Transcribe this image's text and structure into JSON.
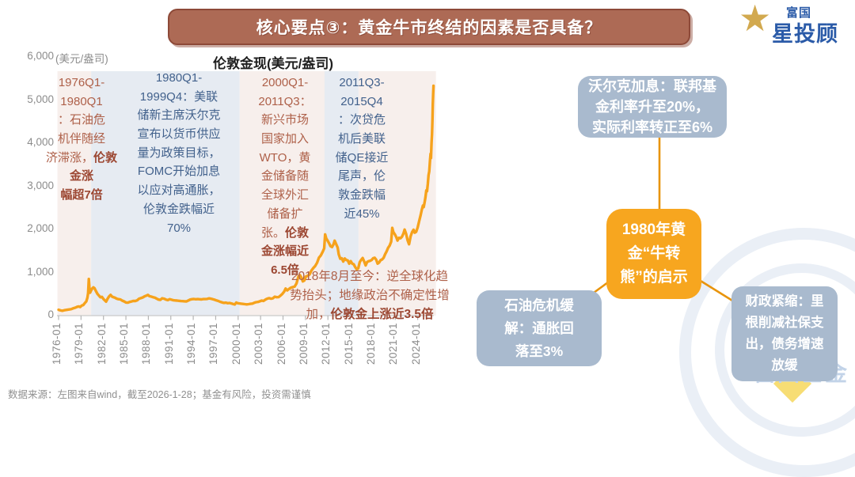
{
  "banner": {
    "title": "核心要点③：黄金牛市终结的因素是否具备？"
  },
  "logo": {
    "line1": "富国",
    "line2": "星投顾",
    "star_icon": "gold-star"
  },
  "chart_data": {
    "type": "line",
    "title": "伦敦金现(美元/盎司)",
    "unit_label": "(美元/盎司)",
    "xlabel": "",
    "ylabel": "美元/盎司",
    "ylim": [
      0,
      6000
    ],
    "grid": false,
    "y_ticks": [
      {
        "value": 6000,
        "label": "6,000"
      },
      {
        "value": 5000,
        "label": "5,000"
      },
      {
        "value": 4000,
        "label": "4,000"
      },
      {
        "value": 3000,
        "label": "3,000"
      },
      {
        "value": 2000,
        "label": "2,000"
      },
      {
        "value": 1000,
        "label": "1,000"
      },
      {
        "value": 0,
        "label": "0"
      }
    ],
    "x_ticks": [
      {
        "year": 1976,
        "label": "1976-01"
      },
      {
        "year": 1979,
        "label": "1979-01"
      },
      {
        "year": 1982,
        "label": "1982-01"
      },
      {
        "year": 1985,
        "label": "1985-01"
      },
      {
        "year": 1988,
        "label": "1988-01"
      },
      {
        "year": 1991,
        "label": "1991-01"
      },
      {
        "year": 1994,
        "label": "1994-01"
      },
      {
        "year": 1997,
        "label": "1997-01"
      },
      {
        "year": 2000,
        "label": "2000-01"
      },
      {
        "year": 2003,
        "label": "2003-01"
      },
      {
        "year": 2006,
        "label": "2006-01"
      },
      {
        "year": 2009,
        "label": "2009-01"
      },
      {
        "year": 2012,
        "label": "2012-01"
      },
      {
        "year": 2015,
        "label": "2015-01"
      },
      {
        "year": 2018,
        "label": "2018-01"
      },
      {
        "year": 2021,
        "label": "2021-01"
      },
      {
        "year": 2024,
        "label": "2024-01"
      }
    ],
    "bands": [
      {
        "from": 1975.85,
        "to": 1980.35,
        "phase": "bull",
        "color": "#f7efec"
      },
      {
        "from": 1980.35,
        "to": 2000.2,
        "phase": "bear",
        "color": "#e6ebf2"
      },
      {
        "from": 2000.2,
        "to": 2011.55,
        "phase": "bull",
        "color": "#f7efec"
      },
      {
        "from": 2011.55,
        "to": 2016.1,
        "phase": "bear",
        "color": "#e6ebf2"
      },
      {
        "from": 2016.1,
        "to": 2026.45,
        "phase": "bull",
        "color": "#f7efec"
      }
    ],
    "series": [
      {
        "name": "伦敦金现",
        "color": "#f6a21c",
        "points": [
          [
            1976.0,
            135
          ],
          [
            1976.25,
            122
          ],
          [
            1976.5,
            112
          ],
          [
            1976.75,
            125
          ],
          [
            1977.0,
            133
          ],
          [
            1977.25,
            140
          ],
          [
            1977.5,
            145
          ],
          [
            1977.75,
            155
          ],
          [
            1978.0,
            172
          ],
          [
            1978.25,
            185
          ],
          [
            1978.5,
            205
          ],
          [
            1978.7,
            212
          ],
          [
            1978.9,
            200
          ],
          [
            1979.1,
            235
          ],
          [
            1979.3,
            245
          ],
          [
            1979.5,
            290
          ],
          [
            1979.7,
            330
          ],
          [
            1979.85,
            415
          ],
          [
            1979.95,
            520
          ],
          [
            1980.04,
            850
          ],
          [
            1980.12,
            665
          ],
          [
            1980.2,
            530
          ],
          [
            1980.35,
            585
          ],
          [
            1980.5,
            630
          ],
          [
            1980.65,
            655
          ],
          [
            1980.8,
            635
          ],
          [
            1981.0,
            565
          ],
          [
            1981.2,
            505
          ],
          [
            1981.4,
            465
          ],
          [
            1981.6,
            425
          ],
          [
            1981.8,
            435
          ],
          [
            1982.0,
            385
          ],
          [
            1982.2,
            350
          ],
          [
            1982.35,
            325
          ],
          [
            1982.55,
            390
          ],
          [
            1982.75,
            445
          ],
          [
            1982.95,
            480
          ],
          [
            1983.15,
            440
          ],
          [
            1983.35,
            425
          ],
          [
            1983.55,
            415
          ],
          [
            1983.75,
            395
          ],
          [
            1984.0,
            382
          ],
          [
            1984.25,
            376
          ],
          [
            1984.5,
            348
          ],
          [
            1984.75,
            330
          ],
          [
            1985.0,
            305
          ],
          [
            1985.25,
            300
          ],
          [
            1985.5,
            318
          ],
          [
            1985.75,
            328
          ],
          [
            1986.0,
            342
          ],
          [
            1986.25,
            340
          ],
          [
            1986.5,
            355
          ],
          [
            1986.75,
            392
          ],
          [
            1987.0,
            405
          ],
          [
            1987.25,
            422
          ],
          [
            1987.5,
            448
          ],
          [
            1987.75,
            465
          ],
          [
            1987.95,
            480
          ],
          [
            1988.15,
            452
          ],
          [
            1988.4,
            440
          ],
          [
            1988.65,
            428
          ],
          [
            1988.9,
            415
          ],
          [
            1989.1,
            395
          ],
          [
            1989.35,
            372
          ],
          [
            1989.6,
            365
          ],
          [
            1989.85,
            402
          ],
          [
            1990.1,
            392
          ],
          [
            1990.35,
            372
          ],
          [
            1990.6,
            360
          ],
          [
            1990.85,
            382
          ],
          [
            1991.1,
            368
          ],
          [
            1991.35,
            356
          ],
          [
            1991.6,
            352
          ],
          [
            1991.85,
            348
          ],
          [
            1992.1,
            344
          ],
          [
            1992.35,
            338
          ],
          [
            1992.6,
            335
          ],
          [
            1992.85,
            332
          ],
          [
            1993.1,
            330
          ],
          [
            1993.35,
            352
          ],
          [
            1993.6,
            372
          ],
          [
            1993.85,
            382
          ],
          [
            1994.1,
            386
          ],
          [
            1994.35,
            380
          ],
          [
            1994.6,
            384
          ],
          [
            1994.85,
            380
          ],
          [
            1995.1,
            376
          ],
          [
            1995.35,
            383
          ],
          [
            1995.6,
            384
          ],
          [
            1995.85,
            387
          ],
          [
            1996.1,
            400
          ],
          [
            1996.35,
            392
          ],
          [
            1996.6,
            382
          ],
          [
            1996.85,
            368
          ],
          [
            1997.1,
            352
          ],
          [
            1997.35,
            340
          ],
          [
            1997.6,
            322
          ],
          [
            1997.85,
            306
          ],
          [
            1998.1,
            295
          ],
          [
            1998.35,
            301
          ],
          [
            1998.6,
            288
          ],
          [
            1998.85,
            293
          ],
          [
            1999.1,
            283
          ],
          [
            1999.35,
            268
          ],
          [
            1999.55,
            258
          ],
          [
            1999.75,
            302
          ],
          [
            1999.95,
            288
          ],
          [
            2000.15,
            283
          ],
          [
            2000.4,
            277
          ],
          [
            2000.65,
            272
          ],
          [
            2000.9,
            266
          ],
          [
            2001.15,
            260
          ],
          [
            2001.4,
            266
          ],
          [
            2001.65,
            273
          ],
          [
            2001.9,
            278
          ],
          [
            2002.15,
            298
          ],
          [
            2002.4,
            312
          ],
          [
            2002.65,
            318
          ],
          [
            2002.9,
            332
          ],
          [
            2003.15,
            348
          ],
          [
            2003.4,
            342
          ],
          [
            2003.65,
            372
          ],
          [
            2003.9,
            395
          ],
          [
            2004.15,
            405
          ],
          [
            2004.4,
            392
          ],
          [
            2004.65,
            402
          ],
          [
            2004.9,
            438
          ],
          [
            2005.15,
            428
          ],
          [
            2005.4,
            430
          ],
          [
            2005.65,
            462
          ],
          [
            2005.9,
            502
          ],
          [
            2006.15,
            556
          ],
          [
            2006.35,
            628
          ],
          [
            2006.55,
            585
          ],
          [
            2006.8,
            618
          ],
          [
            2007.05,
            648
          ],
          [
            2007.3,
            662
          ],
          [
            2007.55,
            672
          ],
          [
            2007.8,
            745
          ],
          [
            2008.05,
            905
          ],
          [
            2008.25,
            940
          ],
          [
            2008.45,
            885
          ],
          [
            2008.65,
            795
          ],
          [
            2008.85,
            815
          ],
          [
            2009.05,
            905
          ],
          [
            2009.3,
            925
          ],
          [
            2009.55,
            955
          ],
          [
            2009.8,
            1045
          ],
          [
            2010.05,
            1105
          ],
          [
            2010.3,
            1150
          ],
          [
            2010.55,
            1225
          ],
          [
            2010.8,
            1345
          ],
          [
            2011.05,
            1395
          ],
          [
            2011.3,
            1480
          ],
          [
            2011.5,
            1560
          ],
          [
            2011.63,
            1885
          ],
          [
            2011.78,
            1790
          ],
          [
            2011.95,
            1745
          ],
          [
            2012.15,
            1680
          ],
          [
            2012.35,
            1610
          ],
          [
            2012.55,
            1590
          ],
          [
            2012.75,
            1655
          ],
          [
            2012.9,
            1740
          ],
          [
            2013.1,
            1660
          ],
          [
            2013.3,
            1580
          ],
          [
            2013.45,
            1420
          ],
          [
            2013.65,
            1320
          ],
          [
            2013.85,
            1330
          ],
          [
            2014.05,
            1255
          ],
          [
            2014.25,
            1325
          ],
          [
            2014.45,
            1290
          ],
          [
            2014.65,
            1282
          ],
          [
            2014.85,
            1205
          ],
          [
            2015.05,
            1265
          ],
          [
            2015.25,
            1205
          ],
          [
            2015.45,
            1190
          ],
          [
            2015.65,
            1125
          ],
          [
            2015.85,
            1075
          ],
          [
            2016.05,
            1095
          ],
          [
            2016.25,
            1240
          ],
          [
            2016.45,
            1295
          ],
          [
            2016.65,
            1335
          ],
          [
            2016.85,
            1255
          ],
          [
            2017.05,
            1165
          ],
          [
            2017.25,
            1245
          ],
          [
            2017.45,
            1262
          ],
          [
            2017.65,
            1272
          ],
          [
            2017.85,
            1292
          ],
          [
            2018.05,
            1332
          ],
          [
            2018.25,
            1342
          ],
          [
            2018.45,
            1298
          ],
          [
            2018.65,
            1205
          ],
          [
            2018.85,
            1232
          ],
          [
            2019.05,
            1288
          ],
          [
            2019.25,
            1302
          ],
          [
            2019.45,
            1342
          ],
          [
            2019.65,
            1425
          ],
          [
            2019.85,
            1492
          ],
          [
            2020.05,
            1575
          ],
          [
            2020.25,
            1625
          ],
          [
            2020.45,
            1715
          ],
          [
            2020.6,
            2035
          ],
          [
            2020.75,
            1935
          ],
          [
            2020.95,
            1885
          ],
          [
            2021.15,
            1815
          ],
          [
            2021.3,
            1742
          ],
          [
            2021.5,
            1805
          ],
          [
            2021.7,
            1795
          ],
          [
            2021.9,
            1832
          ],
          [
            2022.1,
            1905
          ],
          [
            2022.25,
            1995
          ],
          [
            2022.45,
            1895
          ],
          [
            2022.65,
            1752
          ],
          [
            2022.85,
            1655
          ],
          [
            2023.05,
            1835
          ],
          [
            2023.25,
            1935
          ],
          [
            2023.45,
            1992
          ],
          [
            2023.6,
            1925
          ],
          [
            2023.8,
            1945
          ],
          [
            2024.0,
            2045
          ],
          [
            2024.2,
            2195
          ],
          [
            2024.4,
            2335
          ],
          [
            2024.55,
            2455
          ],
          [
            2024.7,
            2552
          ],
          [
            2024.8,
            2518
          ],
          [
            2024.95,
            2655
          ],
          [
            2025.05,
            2758
          ],
          [
            2025.15,
            2905
          ],
          [
            2025.25,
            2885
          ],
          [
            2025.35,
            3055
          ],
          [
            2025.45,
            3255
          ],
          [
            2025.55,
            3345
          ],
          [
            2025.65,
            3605
          ],
          [
            2025.72,
            3752
          ],
          [
            2025.78,
            3655
          ],
          [
            2025.85,
            4005
          ],
          [
            2025.92,
            4205
          ],
          [
            2025.97,
            4505
          ],
          [
            2026.02,
            4905
          ],
          [
            2026.07,
            5155
          ],
          [
            2026.12,
            5330
          ]
        ]
      }
    ],
    "annotations": [
      {
        "id": "1976-1980",
        "tone": "brown",
        "pre": "1976Q1-\n1980Q1\n：石油危\n机伴随经\n济滞涨，",
        "bold": "伦敦金涨\n幅超7倍"
      },
      {
        "id": "1980-1999",
        "tone": "navy",
        "pre": "1980Q1-\n1999Q4：美联\n储新主席沃尔克\n宣布以货币供应\n量为政策目标，\nFOMC开始加息\n以应对高通胀，\n伦敦金跌幅近\n70%",
        "bold": ""
      },
      {
        "id": "2000-2011",
        "tone": "brown",
        "pre": "2000Q1-\n2011Q3：\n新兴市场\n国家加入\nWTO，黄\n金储备随\n全球外汇\n储备扩\n张。",
        "bold": "伦敦\n金涨幅近\n6.5倍"
      },
      {
        "id": "2011-2015",
        "tone": "navy",
        "pre": "2011Q3-\n2015Q4\n：次贷危\n机后美联\n储QE接近\n尾声，伦\n敦金跌幅\n近45%",
        "bold": ""
      },
      {
        "id": "2018-now",
        "tone": "brown",
        "pre": "2018年8月至今：逆全球化趋\n势抬头；地缘政治不确定性增\n加，",
        "bold": "伦敦金上涨近3.5倍"
      }
    ]
  },
  "diagram": {
    "center_box": {
      "text": "1980年黄\n金“牛转\n熊”的启示",
      "color": "#f7a61f"
    },
    "top_box": {
      "text": "沃尔克加息：联邦基\n金利率升至20%，\n实际利率转正至6%",
      "color": "#a9bace"
    },
    "left_box": {
      "text": "石油危机缓\n解：通胀回\n落至3%",
      "color": "#a9bace"
    },
    "right_box": {
      "text": "财政紧缩：里\n根削减社保支\n出，债务增速\n放缓",
      "color": "#a9bace"
    }
  },
  "watermark": {
    "text": "富国基金"
  },
  "footer": {
    "text": "数据来源：左图来自wind，截至2026-1-28；基金有风险，投资需谨慎"
  },
  "colors": {
    "banner_bg": "#ad6a55",
    "banner_border": "#8d4938",
    "line_gold": "#f6a21c",
    "accent_orange": "#f7a61f",
    "box_blue_gray": "#a9bace",
    "band_pink": "#f7efec",
    "band_blue": "#e6ebf2",
    "text_brown": "#ae6049",
    "text_navy": "#42618c",
    "axis_gray": "#8c8c8c",
    "logo_blue": "#2b5ba8",
    "logo_gold": "#d2a94f"
  }
}
